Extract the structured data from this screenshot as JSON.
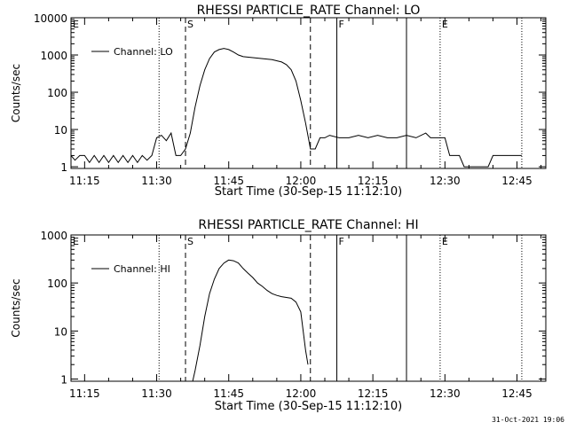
{
  "footer_stamp": "31-Oct-2021 19:06",
  "time_range": {
    "start": "11:12:10",
    "end": "12:51:00"
  },
  "colors": {
    "background": "#ffffff",
    "foreground": "#000000"
  },
  "chart_data": [
    {
      "type": "line",
      "title": "RHESSI PARTICLE_RATE Channel: LO",
      "xlabel": "Start Time (30-Sep-15 11:12:10)",
      "ylabel": "Counts/sec",
      "yscale": "log",
      "ylim": [
        0.9,
        10000
      ],
      "y_ticks": [
        {
          "v": 1,
          "label": "1"
        },
        {
          "v": 10,
          "label": "10"
        },
        {
          "v": 100,
          "label": "100"
        },
        {
          "v": 1000,
          "label": "1000"
        },
        {
          "v": 10000,
          "label": "10000"
        }
      ],
      "x_ticks": [
        "11:15",
        "11:30",
        "11:45",
        "12:00",
        "12:15",
        "12:30",
        "12:45"
      ],
      "legend": {
        "label": "Channel: LO",
        "position": "top-left"
      },
      "markers": [
        {
          "time": "11:12:10",
          "label": "E",
          "style": "dotted"
        },
        {
          "time": "11:30:30",
          "label": "",
          "style": "dotted"
        },
        {
          "time": "11:36:00",
          "label": "S",
          "style": "dashed"
        },
        {
          "time": "12:02:00",
          "label": "",
          "style": "dashed"
        },
        {
          "time": "12:07:30",
          "label": "F",
          "style": "solid"
        },
        {
          "time": "12:22:00",
          "label": "",
          "style": "solid"
        },
        {
          "time": "12:29:00",
          "label": "E",
          "style": "dotted"
        },
        {
          "time": "12:46:00",
          "label": "",
          "style": "dotted"
        }
      ],
      "series": [
        {
          "name": "Channel: LO",
          "x": [
            "11:12:10",
            "11:13:00",
            "11:14:00",
            "11:15:00",
            "11:16:00",
            "11:17:00",
            "11:18:00",
            "11:19:00",
            "11:20:00",
            "11:21:00",
            "11:22:00",
            "11:23:00",
            "11:24:00",
            "11:25:00",
            "11:26:00",
            "11:27:00",
            "11:28:00",
            "11:29:00",
            "11:30:00",
            "11:31:00",
            "11:32:00",
            "11:33:00",
            "11:34:00",
            "11:35:00",
            "11:36:00",
            "11:37:00",
            "11:38:00",
            "11:39:00",
            "11:40:00",
            "11:41:00",
            "11:42:00",
            "11:43:00",
            "11:44:00",
            "11:45:00",
            "11:46:00",
            "11:47:00",
            "11:48:00",
            "11:50:00",
            "11:52:00",
            "11:54:00",
            "11:56:00",
            "11:57:00",
            "11:58:00",
            "11:59:00",
            "12:00:00",
            "12:01:00",
            "12:02:00",
            "12:03:00",
            "12:04:00",
            "12:05:00",
            "12:06:00",
            "12:08:00",
            "12:10:00",
            "12:12:00",
            "12:14:00",
            "12:16:00",
            "12:18:00",
            "12:20:00",
            "12:22:00",
            "12:24:00",
            "12:26:00",
            "12:27:00",
            "12:28:00",
            "12:29:00",
            "12:30:00",
            "12:31:00",
            "12:32:00",
            "12:33:00",
            "12:34:00",
            "12:35:00",
            "12:36:00",
            "12:37:00",
            "12:38:00",
            "12:39:00",
            "12:40:00",
            "12:41:00",
            "12:42:00",
            "12:43:00",
            "12:44:00",
            "12:45:00",
            "12:46:00"
          ],
          "values": [
            2,
            1.5,
            2,
            2,
            1.3,
            2,
            1.3,
            2,
            1.3,
            2,
            1.3,
            2,
            1.3,
            2,
            1.3,
            2,
            1.5,
            2,
            6,
            7,
            5,
            8,
            2,
            2,
            3,
            8,
            40,
            150,
            400,
            800,
            1200,
            1400,
            1500,
            1400,
            1200,
            1000,
            900,
            850,
            800,
            750,
            650,
            550,
            400,
            200,
            60,
            15,
            3,
            3,
            6,
            6,
            7,
            6,
            6,
            7,
            6,
            7,
            6,
            6,
            7,
            6,
            8,
            6,
            6,
            6,
            6,
            2,
            2,
            2,
            1,
            1,
            1,
            1,
            1,
            1,
            2,
            2,
            2,
            2,
            2,
            2,
            2
          ]
        }
      ]
    },
    {
      "type": "line",
      "title": "RHESSI PARTICLE_RATE Channel: HI",
      "xlabel": "Start Time (30-Sep-15 11:12:10)",
      "ylabel": "Counts/sec",
      "yscale": "log",
      "ylim": [
        0.9,
        1000
      ],
      "y_ticks": [
        {
          "v": 1,
          "label": "1"
        },
        {
          "v": 10,
          "label": "10"
        },
        {
          "v": 100,
          "label": "100"
        },
        {
          "v": 1000,
          "label": "1000"
        }
      ],
      "x_ticks": [
        "11:15",
        "11:30",
        "11:45",
        "12:00",
        "12:15",
        "12:30",
        "12:45"
      ],
      "legend": {
        "label": "Channel: HI",
        "position": "top-left"
      },
      "markers": [
        {
          "time": "11:12:10",
          "label": "E",
          "style": "dotted"
        },
        {
          "time": "11:30:30",
          "label": "",
          "style": "dotted"
        },
        {
          "time": "11:36:00",
          "label": "S",
          "style": "dashed"
        },
        {
          "time": "12:02:00",
          "label": "",
          "style": "dashed"
        },
        {
          "time": "12:07:30",
          "label": "F",
          "style": "solid"
        },
        {
          "time": "12:22:00",
          "label": "",
          "style": "solid"
        },
        {
          "time": "12:29:00",
          "label": "E",
          "style": "dotted"
        },
        {
          "time": "12:46:00",
          "label": "",
          "style": "dotted"
        }
      ],
      "series": [
        {
          "name": "Channel: HI",
          "x": [
            "11:37:30",
            "11:38:00",
            "11:39:00",
            "11:40:00",
            "11:41:00",
            "11:42:00",
            "11:43:00",
            "11:44:00",
            "11:45:00",
            "11:46:00",
            "11:47:00",
            "11:48:00",
            "11:49:00",
            "11:50:00",
            "11:51:00",
            "11:52:00",
            "11:53:00",
            "11:54:00",
            "11:55:00",
            "11:56:00",
            "11:57:00",
            "11:58:00",
            "11:59:00",
            "12:00:00",
            "12:00:30",
            "12:01:00",
            "12:01:30"
          ],
          "values": [
            0.9,
            1.5,
            5,
            20,
            60,
            120,
            200,
            260,
            300,
            290,
            260,
            200,
            160,
            130,
            100,
            85,
            70,
            60,
            55,
            52,
            50,
            48,
            40,
            25,
            10,
            4,
            2
          ]
        }
      ]
    }
  ]
}
